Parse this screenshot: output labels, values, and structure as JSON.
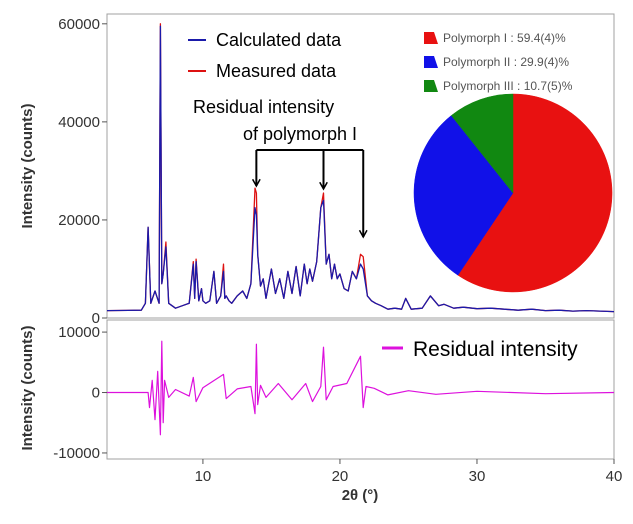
{
  "chart_data": [
    {
      "type": "line",
      "panel": "top",
      "ylabel": "Intensity (counts)",
      "xlim": [
        3,
        40
      ],
      "ylim": [
        0,
        62000
      ],
      "yticks": [
        0,
        20000,
        40000,
        60000
      ],
      "ytick_labels": [
        "0",
        "20000",
        "40000",
        "60000"
      ],
      "grid": false,
      "legend_position": "top-left",
      "series": [
        {
          "name": "Calculated data",
          "color": "#1a1aaa",
          "x": [
            3.0,
            5.5,
            5.8,
            6.0,
            6.2,
            6.5,
            6.8,
            6.9,
            7.0,
            7.1,
            7.3,
            7.5,
            8.0,
            8.5,
            9.0,
            9.3,
            9.4,
            9.5,
            9.7,
            9.9,
            10.0,
            10.2,
            10.5,
            10.8,
            11.0,
            11.3,
            11.5,
            11.6,
            11.7,
            11.9,
            12.1,
            12.5,
            12.9,
            13.2,
            13.5,
            13.8,
            13.9,
            14.0,
            14.2,
            14.4,
            14.6,
            15.0,
            15.3,
            15.6,
            15.9,
            16.2,
            16.5,
            16.8,
            17.1,
            17.4,
            17.6,
            17.8,
            18.0,
            18.3,
            18.6,
            18.8,
            19.0,
            19.2,
            19.4,
            19.6,
            19.8,
            20.0,
            20.3,
            20.6,
            20.9,
            21.2,
            21.5,
            21.7,
            22.0,
            22.3,
            22.6,
            23.0,
            23.5,
            24.0,
            24.5,
            24.8,
            25.2,
            26.0,
            26.6,
            27.2,
            27.6,
            28.3,
            29.0,
            30.0,
            31.0,
            32.0,
            33.0,
            34.0,
            35.0,
            36.0,
            37.0,
            38.0,
            39.0,
            40.0
          ],
          "y": [
            1500,
            1600,
            3000,
            18500,
            3000,
            5500,
            3000,
            59500,
            7000,
            9000,
            14500,
            3000,
            2000,
            2500,
            3000,
            11000,
            4000,
            11500,
            3500,
            6000,
            3500,
            3000,
            3500,
            9500,
            3000,
            4500,
            9500,
            4000,
            4500,
            3500,
            3000,
            4500,
            5500,
            4000,
            7000,
            22500,
            21000,
            13000,
            6500,
            8000,
            4000,
            10000,
            5000,
            8000,
            4000,
            9500,
            5000,
            10500,
            4500,
            11000,
            7000,
            10000,
            7500,
            11500,
            22500,
            24000,
            11000,
            13000,
            8000,
            11000,
            8000,
            9000,
            6000,
            5500,
            9500,
            8000,
            11000,
            10000,
            4500,
            3500,
            3000,
            2500,
            1800,
            2000,
            1800,
            4000,
            1800,
            2000,
            4500,
            2500,
            2800,
            2000,
            2200,
            1900,
            2000,
            1800,
            1600,
            1800,
            1500,
            1600,
            1400,
            1500,
            1400,
            1300
          ]
        },
        {
          "name": "Measured data",
          "color": "#dd1111",
          "x": [
            6.9,
            7.3,
            9.3,
            9.5,
            11.5,
            13.8,
            13.9,
            18.8,
            21.5,
            21.7
          ],
          "y": [
            60000,
            15500,
            11500,
            12000,
            11000,
            26500,
            25500,
            25500,
            13000,
            12500
          ]
        }
      ],
      "annotations": [
        {
          "text": "Residual intensity",
          "arrow_targets_x": [
            13.9,
            18.8,
            21.7
          ]
        },
        {
          "text": "of polymorph I"
        }
      ]
    },
    {
      "type": "pie",
      "panel": "inset",
      "legend_position": "top",
      "slices": [
        {
          "label": "Polymorph I : 59.4(4)%",
          "value": 59.4,
          "color": "#e81111"
        },
        {
          "label": "Polymorph II : 29.9(4)%",
          "value": 29.9,
          "color": "#1111e8"
        },
        {
          "label": "Polymorph III : 10.7(5)%",
          "value": 10.7,
          "color": "#118811"
        }
      ]
    },
    {
      "type": "line",
      "panel": "bottom",
      "xlabel": "2θ (°)",
      "ylabel": "Intensity (counts)",
      "xlim": [
        3,
        40
      ],
      "ylim": [
        -11000,
        12000
      ],
      "xticks": [
        10,
        20,
        30,
        40
      ],
      "xtick_labels": [
        "10",
        "20",
        "30",
        "40"
      ],
      "yticks": [
        -10000,
        0,
        10000
      ],
      "ytick_labels": [
        "-10000",
        "0",
        "10000"
      ],
      "grid": false,
      "legend_position": "top-right",
      "series": [
        {
          "name": "Residual intensity",
          "color": "#dd11dd",
          "x": [
            3.0,
            5.5,
            6.0,
            6.1,
            6.3,
            6.5,
            6.7,
            6.9,
            7.0,
            7.1,
            7.2,
            7.5,
            8.0,
            9.0,
            9.3,
            9.5,
            10.0,
            11.5,
            11.7,
            12.5,
            13.5,
            13.8,
            13.9,
            14.0,
            14.2,
            14.6,
            15.5,
            16.5,
            17.5,
            18.0,
            18.6,
            18.8,
            19.0,
            19.5,
            20.5,
            21.5,
            21.7,
            21.9,
            22.5,
            23.5,
            25.0,
            27.0,
            30.0,
            35.0,
            40.0
          ],
          "y": [
            0,
            0,
            0,
            -2500,
            2000,
            -4500,
            3500,
            -7000,
            8500,
            -5000,
            2000,
            -800,
            500,
            -600,
            2500,
            -1500,
            800,
            3000,
            -1000,
            600,
            1000,
            -3500,
            8000,
            -2000,
            1200,
            -800,
            1500,
            -1200,
            1500,
            -1500,
            1000,
            7500,
            -1200,
            1000,
            1500,
            6000,
            -2500,
            1000,
            700,
            -400,
            300,
            -300,
            200,
            -200,
            0
          ]
        }
      ]
    }
  ]
}
